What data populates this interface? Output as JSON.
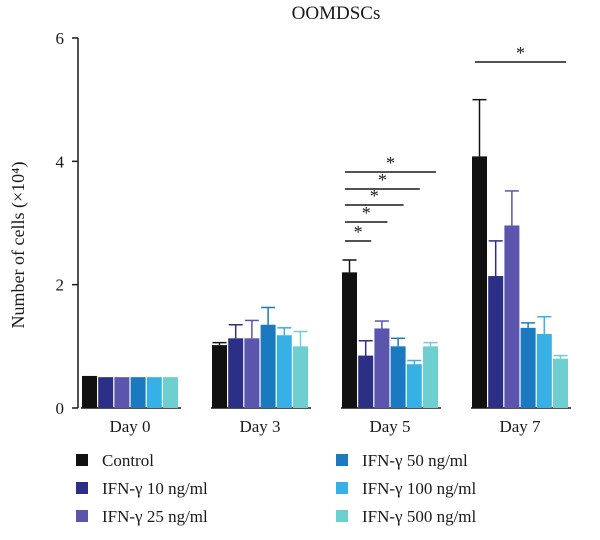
{
  "chart_data": {
    "type": "bar",
    "title": "OOMDSCs",
    "ylabel": "Number of cells (×10⁴)",
    "xlabel": "",
    "ylim": [
      0,
      6
    ],
    "yticks": [
      "0",
      "2",
      "4",
      "6"
    ],
    "categories": [
      "Day 0",
      "Day 3",
      "Day 5",
      "Day 7"
    ],
    "series": [
      {
        "name": "Control",
        "color": "#111111",
        "values": [
          0.52,
          1.02,
          2.2,
          4.08
        ],
        "errors": [
          0.0,
          0.04,
          0.2,
          0.92
        ]
      },
      {
        "name": "IFN-γ 10 ng/ml",
        "color": "#2c2f86",
        "values": [
          0.5,
          1.13,
          0.85,
          2.14
        ],
        "errors": [
          0.0,
          0.22,
          0.24,
          0.57
        ]
      },
      {
        "name": "IFN-γ 25 ng/ml",
        "color": "#5b55ad",
        "values": [
          0.5,
          1.13,
          1.29,
          2.96
        ],
        "errors": [
          0.0,
          0.29,
          0.12,
          0.56
        ]
      },
      {
        "name": "IFN-γ 50 ng/ml",
        "color": "#1b79bf",
        "values": [
          0.5,
          1.35,
          1.0,
          1.3
        ],
        "errors": [
          0.0,
          0.28,
          0.13,
          0.08
        ]
      },
      {
        "name": "IFN-γ 100 ng/ml",
        "color": "#37b0e6",
        "values": [
          0.5,
          1.18,
          0.71,
          1.2
        ],
        "errors": [
          0.0,
          0.12,
          0.06,
          0.28
        ]
      },
      {
        "name": "IFN-γ 500 ng/ml",
        "color": "#6dcfcf",
        "values": [
          0.5,
          1.0,
          1.0,
          0.8
        ],
        "errors": [
          0.0,
          0.24,
          0.06,
          0.05
        ]
      }
    ],
    "significance": [
      {
        "category": "Day 5",
        "from": "Control",
        "to": "IFN-γ 10 ng/ml",
        "label": "*"
      },
      {
        "category": "Day 5",
        "from": "Control",
        "to": "IFN-γ 25 ng/ml",
        "label": "*"
      },
      {
        "category": "Day 5",
        "from": "Control",
        "to": "IFN-γ 50 ng/ml",
        "label": "*"
      },
      {
        "category": "Day 5",
        "from": "Control",
        "to": "IFN-γ 100 ng/ml",
        "label": "*"
      },
      {
        "category": "Day 5",
        "from": "Control",
        "to": "IFN-γ 500 ng/ml",
        "label": "*"
      },
      {
        "category": "Day 7",
        "from": "Control",
        "to": "IFN-γ 500 ng/ml",
        "label": "*"
      }
    ],
    "legend_placement": "bottom",
    "grid": false
  }
}
